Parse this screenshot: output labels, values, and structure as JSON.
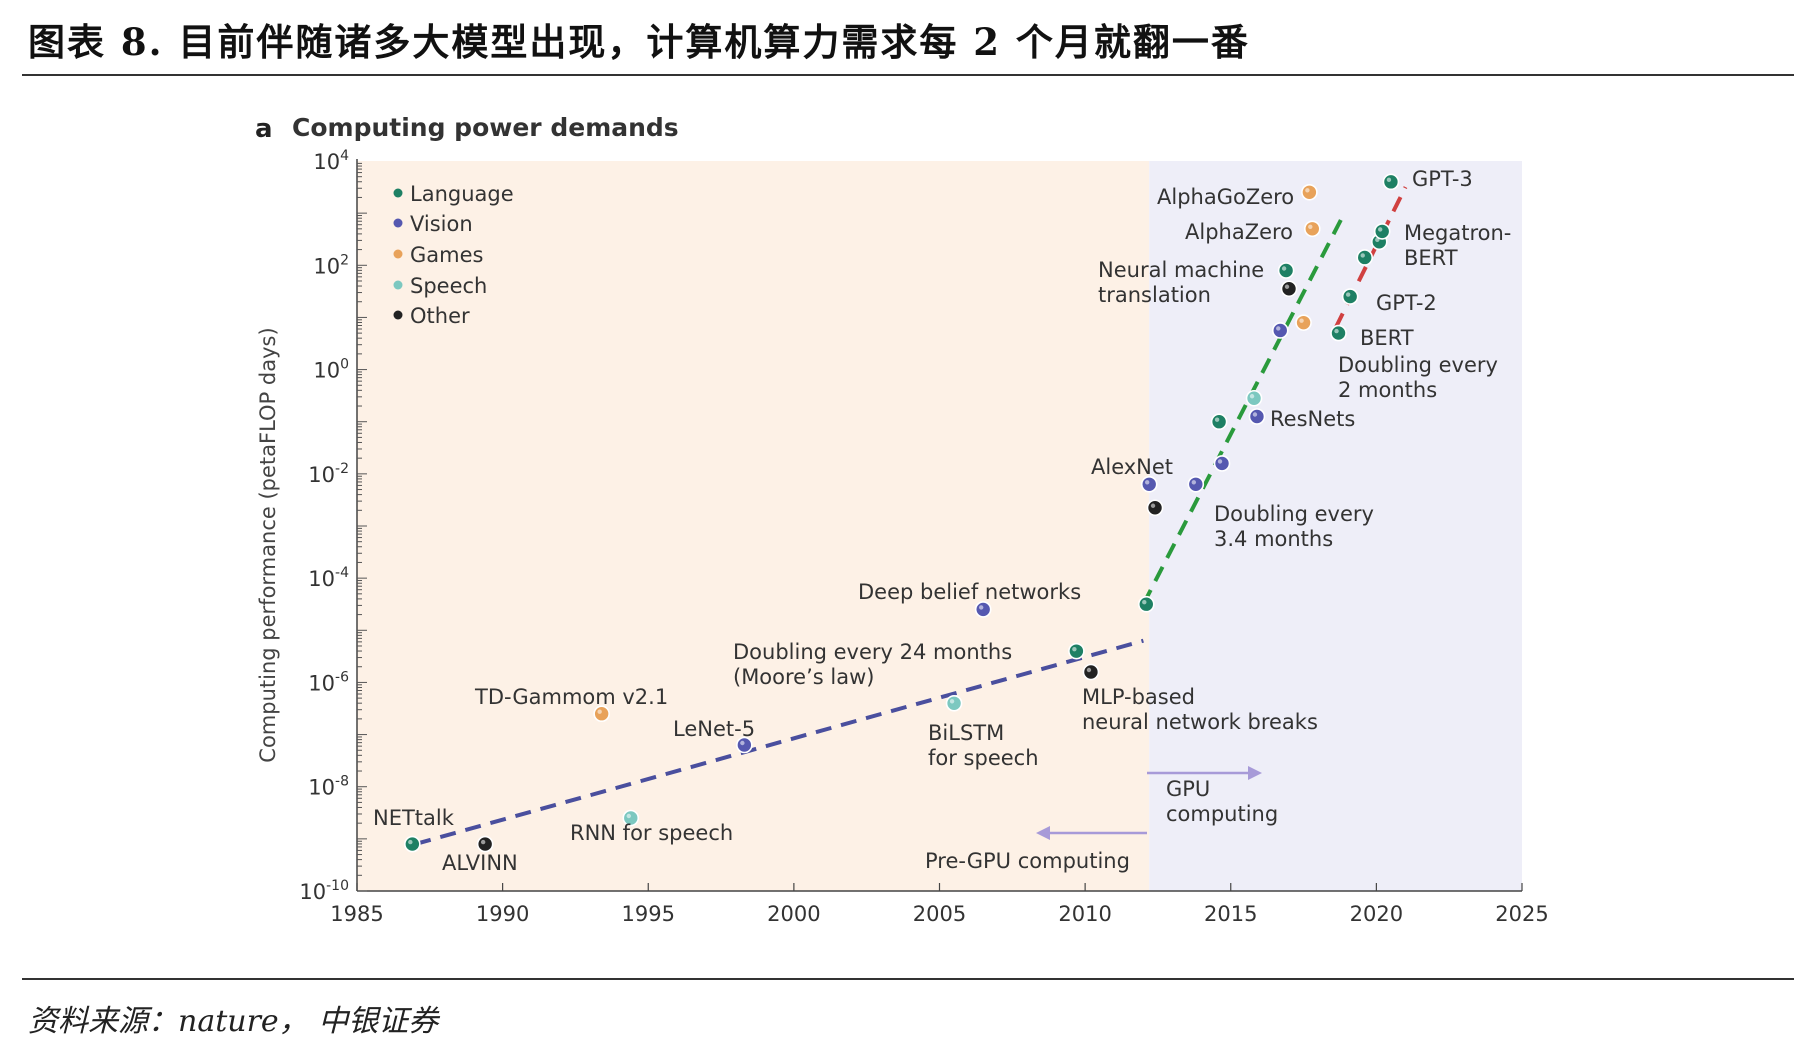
{
  "page": {
    "title": "图表 8. 目前伴随诸多大模型出现，计算机算力需求每 2 个月就翻一番",
    "source": "资料来源：nature，  中银证券"
  },
  "chart_data": {
    "type": "scatter",
    "panel_letter": "a",
    "title": "Computing power demands",
    "xlabel": "",
    "ylabel": "Computing performance (petaFLOP days)",
    "y_scale": "log",
    "xlim": [
      1985,
      2025
    ],
    "ylim": [
      -10,
      4
    ],
    "x_ticks": [
      1985,
      1990,
      1995,
      2000,
      2005,
      2010,
      2015,
      2020,
      2025
    ],
    "y_ticks": [
      {
        "exp": 4,
        "label": "10",
        "sup": "4"
      },
      {
        "exp": 2,
        "label": "10",
        "sup": "2"
      },
      {
        "exp": 0,
        "label": "10",
        "sup": "0"
      },
      {
        "exp": -2,
        "label": "10",
        "sup": "-2"
      },
      {
        "exp": -4,
        "label": "10",
        "sup": "-4"
      },
      {
        "exp": -6,
        "label": "10",
        "sup": "-6"
      },
      {
        "exp": -8,
        "label": "10",
        "sup": "-8"
      },
      {
        "exp": -10,
        "label": "10",
        "sup": "-10"
      }
    ],
    "regions": [
      {
        "name": "pre-gpu",
        "x_range": [
          1985,
          2012.2
        ],
        "color": "#fdf1e6"
      },
      {
        "name": "gpu",
        "x_range": [
          2012.2,
          2025
        ],
        "color": "#eeeef8"
      }
    ],
    "categories": [
      {
        "name": "Language",
        "color": "#1e8064"
      },
      {
        "name": "Vision",
        "color": "#5558b0"
      },
      {
        "name": "Games",
        "color": "#e8a25a"
      },
      {
        "name": "Speech",
        "color": "#7cc8c0"
      },
      {
        "name": "Other",
        "color": "#222222"
      }
    ],
    "points": [
      {
        "x": 1986.9,
        "y": -9.1,
        "cat": "Language",
        "label": "NETtalk"
      },
      {
        "x": 1989.4,
        "y": -9.1,
        "cat": "Other",
        "label": "ALVINN"
      },
      {
        "x": 1993.4,
        "y": -6.6,
        "cat": "Games",
        "label": "TD-Gammom v2.1"
      },
      {
        "x": 1994.4,
        "y": -8.6,
        "cat": "Speech",
        "label": "RNN for speech"
      },
      {
        "x": 1998.3,
        "y": -7.2,
        "cat": "Vision",
        "label": "LeNet-5"
      },
      {
        "x": 2005.5,
        "y": -6.4,
        "cat": "Speech",
        "label": "BiLSTM for speech"
      },
      {
        "x": 2006.5,
        "y": -4.6,
        "cat": "Vision",
        "label": "Deep belief networks"
      },
      {
        "x": 2009.7,
        "y": -5.4,
        "cat": "Language",
        "label": ""
      },
      {
        "x": 2010.2,
        "y": -5.8,
        "cat": "Other",
        "label": "MLP-based neural network breaks"
      },
      {
        "x": 2012.1,
        "y": -4.5,
        "cat": "Language",
        "label": ""
      },
      {
        "x": 2012.2,
        "y": -2.2,
        "cat": "Vision",
        "label": "AlexNet"
      },
      {
        "x": 2012.4,
        "y": -2.65,
        "cat": "Other",
        "label": ""
      },
      {
        "x": 2013.8,
        "y": -2.2,
        "cat": "Vision",
        "label": ""
      },
      {
        "x": 2014.6,
        "y": -1.0,
        "cat": "Language",
        "label": ""
      },
      {
        "x": 2014.7,
        "y": -1.8,
        "cat": "Vision",
        "label": ""
      },
      {
        "x": 2015.8,
        "y": -0.55,
        "cat": "Speech",
        "label": ""
      },
      {
        "x": 2015.9,
        "y": -0.9,
        "cat": "Vision",
        "label": "ResNets"
      },
      {
        "x": 2016.7,
        "y": 0.75,
        "cat": "Vision",
        "label": ""
      },
      {
        "x": 2016.9,
        "y": 1.9,
        "cat": "Language",
        "label": "Neural machine translation"
      },
      {
        "x": 2017.0,
        "y": 1.55,
        "cat": "Other",
        "label": ""
      },
      {
        "x": 2017.5,
        "y": 0.9,
        "cat": "Games",
        "label": ""
      },
      {
        "x": 2017.7,
        "y": 3.4,
        "cat": "Games",
        "label": "AlphaGoZero"
      },
      {
        "x": 2017.8,
        "y": 2.7,
        "cat": "Games",
        "label": "AlphaZero"
      },
      {
        "x": 2018.7,
        "y": 0.7,
        "cat": "Language",
        "label": "BERT"
      },
      {
        "x": 2019.1,
        "y": 1.4,
        "cat": "Language",
        "label": "GPT-2"
      },
      {
        "x": 2019.6,
        "y": 2.15,
        "cat": "Language",
        "label": ""
      },
      {
        "x": 2020.1,
        "y": 2.45,
        "cat": "Language",
        "label": ""
      },
      {
        "x": 2020.2,
        "y": 2.65,
        "cat": "Language",
        "label": "Megatron-BERT"
      },
      {
        "x": 2020.5,
        "y": 3.6,
        "cat": "Language",
        "label": "GPT-3"
      }
    ],
    "trend_lines": [
      {
        "name": "moore",
        "label": "Doubling every 24 months",
        "sublabel": "(Moore’s law)",
        "from": [
          1987,
          -9.1
        ],
        "to": [
          2012,
          -5.2
        ],
        "color": "#4a4f9e"
      },
      {
        "name": "gpu-era",
        "label": "Doubling every",
        "sublabel": "3.4 months",
        "from": [
          2012,
          -4.5
        ],
        "to": [
          2018.9,
          3.0
        ],
        "color": "#2a9a3c"
      },
      {
        "name": "llm-era",
        "label": "Doubling every",
        "sublabel": "2 months",
        "from": [
          2018.6,
          0.8
        ],
        "to": [
          2021.0,
          3.5
        ],
        "color": "#d04040"
      }
    ],
    "annotations": {
      "gpu": [
        "GPU",
        "computing"
      ],
      "pre_gpu": "Pre-GPU computing",
      "neural_machine": [
        "Neural machine",
        "translation"
      ],
      "megatron": [
        "Megatron-",
        "BERT"
      ],
      "mlp": [
        "MLP-based",
        "neural network breaks"
      ],
      "bilstm": [
        "BiLSTM",
        "for speech"
      ]
    },
    "legend_position": "top-left"
  }
}
